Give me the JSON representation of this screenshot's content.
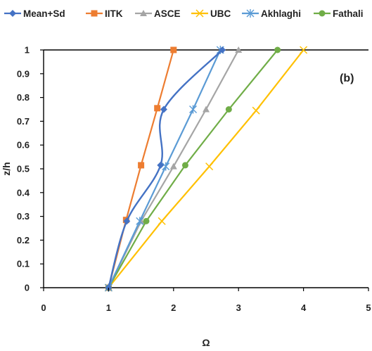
{
  "chart_data": {
    "type": "line",
    "annotation": "(b)",
    "xlabel": "Ω",
    "ylabel": "z/h",
    "xlim": [
      0,
      5
    ],
    "ylim": [
      0,
      1
    ],
    "xticks": [
      "0",
      "1",
      "2",
      "3",
      "4",
      "5"
    ],
    "yticks": [
      "0",
      "0.1",
      "0.2",
      "0.3",
      "0.4",
      "0.5",
      "0.6",
      "0.7",
      "0.8",
      "0.9",
      "1"
    ],
    "grid": false,
    "legend_position": "top",
    "series": [
      {
        "name": "Mean+Sd",
        "color": "#4472C4",
        "marker": "diamond",
        "smooth": true,
        "x": [
          1,
          1.28,
          1.8,
          1.85,
          2.75
        ],
        "y": [
          0,
          0.28,
          0.515,
          0.75,
          1
        ]
      },
      {
        "name": "IITK",
        "color": "#ED7D31",
        "marker": "square",
        "smooth": false,
        "x": [
          1,
          1.27,
          1.5,
          1.75,
          2
        ],
        "y": [
          0,
          0.285,
          0.515,
          0.755,
          1
        ]
      },
      {
        "name": "ASCE",
        "color": "#A5A5A5",
        "marker": "triangle",
        "smooth": false,
        "x": [
          1,
          1.5,
          2,
          2.5,
          3
        ],
        "y": [
          0,
          0.28,
          0.51,
          0.75,
          1
        ]
      },
      {
        "name": "UBC",
        "color": "#FFC000",
        "marker": "x",
        "smooth": false,
        "x": [
          1,
          1.82,
          2.55,
          3.27,
          4
        ],
        "y": [
          0,
          0.28,
          0.51,
          0.745,
          1
        ]
      },
      {
        "name": "Akhlaghi",
        "color": "#5B9BD5",
        "marker": "star",
        "smooth": false,
        "x": [
          1,
          1.48,
          1.88,
          2.3,
          2.72
        ],
        "y": [
          0,
          0.28,
          0.51,
          0.75,
          1
        ]
      },
      {
        "name": "Fathali",
        "color": "#70AD47",
        "marker": "circle",
        "smooth": false,
        "x": [
          1,
          1.58,
          2.18,
          2.85,
          3.6
        ],
        "y": [
          0,
          0.28,
          0.515,
          0.75,
          1
        ]
      }
    ]
  }
}
